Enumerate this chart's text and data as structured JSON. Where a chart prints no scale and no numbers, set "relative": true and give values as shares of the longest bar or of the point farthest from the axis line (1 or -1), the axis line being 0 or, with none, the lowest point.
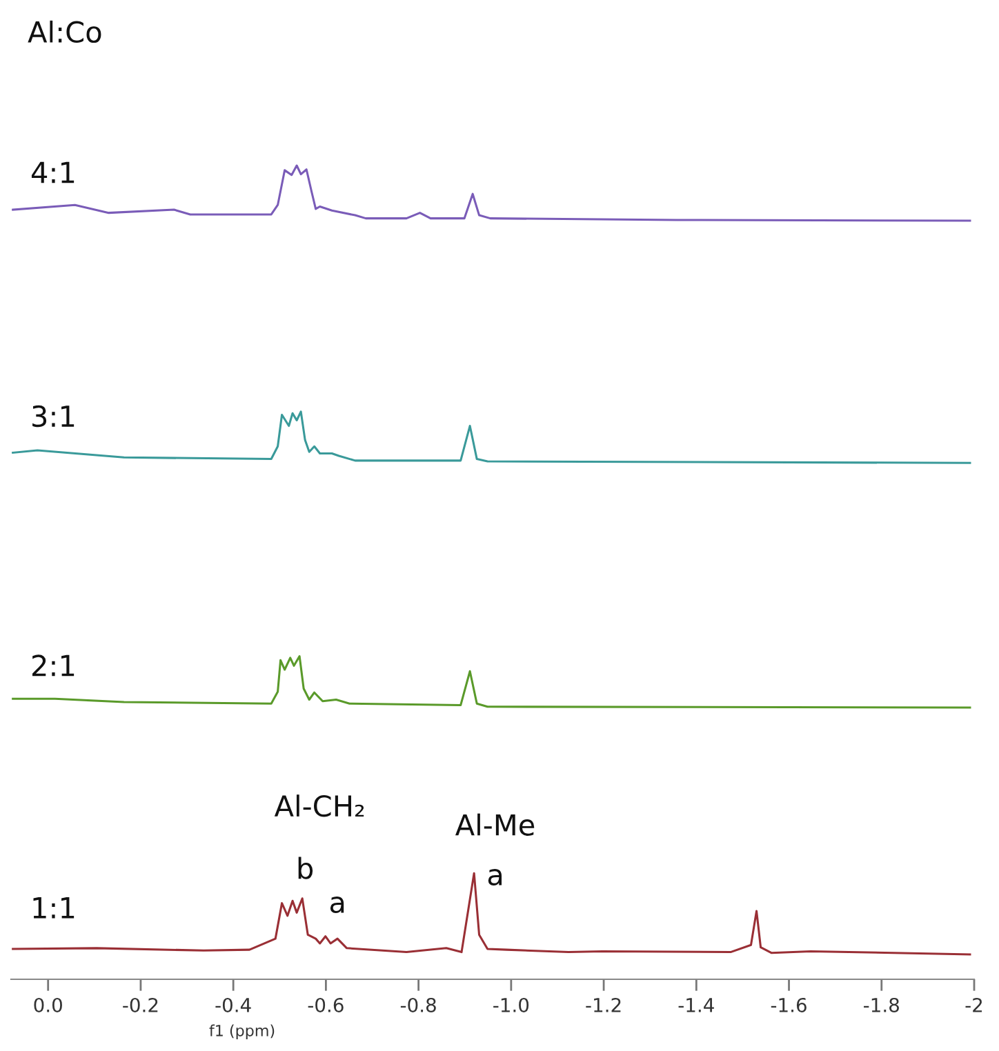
{
  "chart_data": {
    "type": "line",
    "title": "Al:Co",
    "relative": true,
    "tick_labels": "x",
    "xlabel": "f1 (ppm)",
    "xlim": [
      0.08,
      -2.0
    ],
    "xticks": [
      {
        "value": 0,
        "label": "0.0"
      },
      {
        "value": -0.2,
        "label": "-0.2"
      },
      {
        "value": -0.4,
        "label": "-0.4"
      },
      {
        "value": -0.6,
        "label": "-0.6"
      },
      {
        "value": -0.8,
        "label": "-0.8"
      },
      {
        "value": -1.0,
        "label": "-1.0"
      },
      {
        "value": -1.2,
        "label": "-1.2"
      },
      {
        "value": -1.4,
        "label": "-1.4"
      },
      {
        "value": -1.6,
        "label": "-1.6"
      },
      {
        "value": -1.8,
        "label": "-1.8"
      },
      {
        "value": -2.0,
        "label": "-2"
      }
    ],
    "annotations": [
      {
        "text": "Al-CH₂",
        "x": -0.53,
        "y": 0.071
      },
      {
        "text": "b",
        "x": -0.53,
        "y": 0.071
      },
      {
        "text": "a",
        "x": -0.61,
        "y": 0.023
      },
      {
        "text": "Al-Me",
        "x": -0.92,
        "y": 0.103
      },
      {
        "text": "a",
        "x": -0.92,
        "y": 0.103
      }
    ],
    "series": [
      {
        "name": "4:1",
        "color": "#7a5cb8",
        "x": [
          0.076,
          -0.058,
          -0.131,
          -0.272,
          -0.307,
          -0.482,
          -0.496,
          -0.511,
          -0.526,
          -0.537,
          -0.546,
          -0.558,
          -0.569,
          -0.578,
          -0.587,
          -0.613,
          -0.663,
          -0.686,
          -0.774,
          -0.803,
          -0.826,
          -0.899,
          -0.917,
          -0.931,
          -0.955,
          -1.358,
          -1.991
        ],
        "values": [
          0.944,
          0.95,
          0.94,
          0.944,
          0.938,
          0.938,
          0.95,
          0.994,
          0.988,
          1.0,
          0.989,
          0.995,
          0.967,
          0.945,
          0.948,
          0.943,
          0.937,
          0.933,
          0.933,
          0.94,
          0.933,
          0.933,
          0.964,
          0.937,
          0.933,
          0.931,
          0.93
        ]
      },
      {
        "name": "3:1",
        "color": "#3a9a9a",
        "x": [
          0.076,
          0.023,
          -0.164,
          -0.482,
          -0.496,
          -0.505,
          -0.52,
          -0.528,
          -0.537,
          -0.546,
          -0.555,
          -0.564,
          -0.575,
          -0.587,
          -0.613,
          -0.628,
          -0.663,
          -0.891,
          -0.911,
          -0.926,
          -0.949,
          -1.991
        ],
        "values": [
          0.636,
          0.639,
          0.63,
          0.628,
          0.644,
          0.684,
          0.67,
          0.686,
          0.677,
          0.688,
          0.652,
          0.637,
          0.644,
          0.635,
          0.635,
          0.632,
          0.626,
          0.626,
          0.67,
          0.628,
          0.625,
          0.623
        ]
      },
      {
        "name": "2:1",
        "color": "#5a9a2a",
        "x": [
          0.076,
          -0.015,
          -0.164,
          -0.482,
          -0.496,
          -0.502,
          -0.511,
          -0.523,
          -0.531,
          -0.543,
          -0.552,
          -0.564,
          -0.575,
          -0.593,
          -0.622,
          -0.651,
          -0.891,
          -0.911,
          -0.926,
          -0.949,
          -1.991
        ],
        "values": [
          0.324,
          0.324,
          0.32,
          0.318,
          0.333,
          0.373,
          0.361,
          0.376,
          0.366,
          0.378,
          0.337,
          0.323,
          0.332,
          0.321,
          0.323,
          0.318,
          0.316,
          0.359,
          0.318,
          0.314,
          0.313
        ]
      },
      {
        "name": "1:1",
        "color": "#9a2f35",
        "x": [
          0.076,
          -0.105,
          -0.336,
          -0.435,
          -0.491,
          -0.505,
          -0.517,
          -0.528,
          -0.537,
          -0.549,
          -0.561,
          -0.578,
          -0.587,
          -0.599,
          -0.61,
          -0.625,
          -0.645,
          -0.774,
          -0.86,
          -0.893,
          -0.92,
          -0.931,
          -0.949,
          -0.99,
          -1.124,
          -1.197,
          -1.474,
          -1.518,
          -1.53,
          -1.539,
          -1.562,
          -1.647,
          -1.991
        ],
        "values": [
          0.007,
          0.008,
          0.005,
          0.006,
          0.02,
          0.065,
          0.049,
          0.068,
          0.053,
          0.071,
          0.025,
          0.02,
          0.014,
          0.023,
          0.014,
          0.02,
          0.008,
          0.003,
          0.008,
          0.003,
          0.103,
          0.025,
          0.007,
          0.006,
          0.003,
          0.004,
          0.003,
          0.012,
          0.055,
          0.009,
          0.002,
          0.004,
          0
        ]
      }
    ]
  }
}
